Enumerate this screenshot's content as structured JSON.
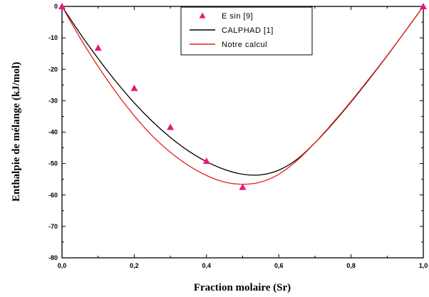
{
  "chart_data": {
    "type": "line",
    "xlabel": "Fraction molaire (Sr)",
    "ylabel": "Enthalpie de mélange (kJ/mol)",
    "xlim": [
      0.0,
      1.0
    ],
    "ylim": [
      -80,
      0
    ],
    "x_ticks": [
      "0,0",
      "0,2",
      "0,4",
      "0,6",
      "0,8",
      "1,0"
    ],
    "y_ticks": [
      "0",
      "-10",
      "-20",
      "-30",
      "-40",
      "-50",
      "-60",
      "-70",
      "-80"
    ],
    "legend_position": "top-center",
    "series": [
      {
        "name": "E sin [9]",
        "style": "markers",
        "marker": "triangle",
        "color": "#e6197e",
        "x": [
          0.0,
          0.1,
          0.2,
          0.3,
          0.4,
          0.5,
          1.0
        ],
        "y": [
          0.0,
          -13.2,
          -26.0,
          -38.4,
          -49.2,
          -57.5,
          0.0
        ]
      },
      {
        "name": "CALPHAD [1]",
        "style": "line",
        "color": "#000000",
        "x": [
          0.0,
          0.05,
          0.1,
          0.15,
          0.2,
          0.25,
          0.3,
          0.35,
          0.4,
          0.45,
          0.5,
          0.55,
          0.6,
          0.65,
          0.7,
          0.75,
          0.8,
          0.85,
          0.9,
          0.95,
          1.0
        ],
        "y": [
          0.0,
          -8.6,
          -16.6,
          -24.0,
          -30.7,
          -36.6,
          -41.7,
          -46.0,
          -49.4,
          -51.9,
          -53.4,
          -53.6,
          -52.1,
          -48.7,
          -43.4,
          -37.2,
          -30.4,
          -23.2,
          -15.7,
          -7.9,
          0.0
        ]
      },
      {
        "name": "Notre calcul",
        "style": "line",
        "color": "#e8201c",
        "x": [
          0.0,
          0.05,
          0.1,
          0.15,
          0.2,
          0.25,
          0.3,
          0.35,
          0.4,
          0.45,
          0.5,
          0.55,
          0.6,
          0.65,
          0.7,
          0.75,
          0.8,
          0.85,
          0.9,
          0.95,
          1.0
        ],
        "y": [
          0.0,
          -10.0,
          -19.1,
          -27.4,
          -34.8,
          -41.2,
          -46.4,
          -50.6,
          -53.8,
          -55.9,
          -56.6,
          -55.9,
          -53.4,
          -49.1,
          -43.4,
          -37.0,
          -30.2,
          -23.0,
          -15.6,
          -7.9,
          0.0
        ]
      }
    ]
  }
}
